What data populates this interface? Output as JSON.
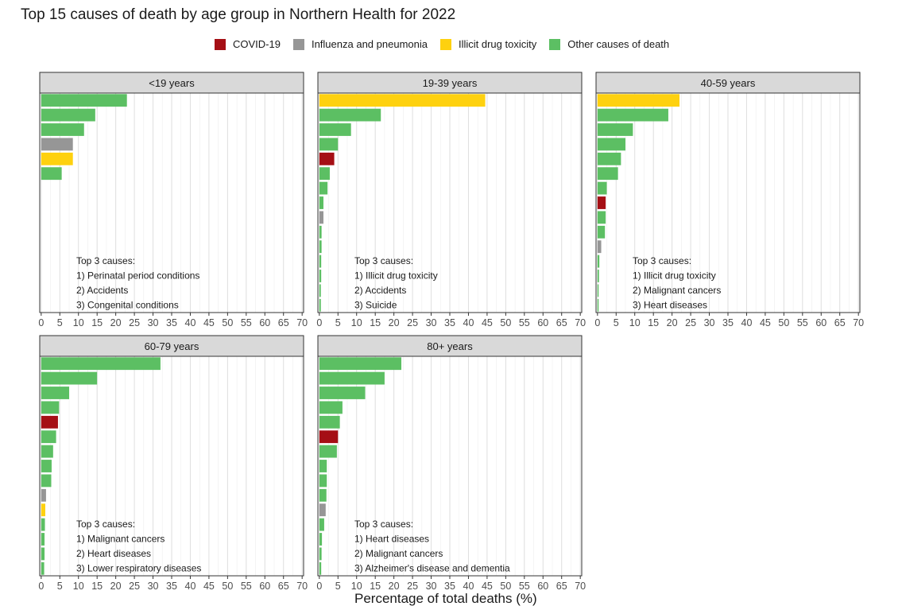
{
  "chart_data": {
    "type": "bar",
    "orientation": "horizontal",
    "title": "Top 15 causes of death by age group in Northern Health for 2022",
    "xlabel": "Percentage of total deaths (%)",
    "ylabel": "",
    "xlim": [
      0,
      70
    ],
    "x_ticks": [
      "0",
      "5",
      "10",
      "15",
      "20",
      "25",
      "30",
      "35",
      "40",
      "45",
      "50",
      "55",
      "60",
      "65",
      "70"
    ],
    "grid": true,
    "legend_position": "top",
    "legend": [
      {
        "name": "COVID-19",
        "color": "#a50f15"
      },
      {
        "name": "Influenza and pneumonia",
        "color": "#969696"
      },
      {
        "name": "Illicit drug toxicity",
        "color": "#fed10f"
      },
      {
        "name": "Other causes of death",
        "color": "#5cbf63"
      }
    ],
    "panels": [
      {
        "title": "<19 years",
        "annotation": [
          "Top 3 causes:",
          "1) Perinatal period conditions",
          "2) Accidents",
          "3) Congenital conditions"
        ],
        "bars": [
          {
            "value": 23,
            "category": "Other causes of death"
          },
          {
            "value": 14.5,
            "category": "Other causes of death"
          },
          {
            "value": 11.5,
            "category": "Other causes of death"
          },
          {
            "value": 8.5,
            "category": "Influenza and pneumonia"
          },
          {
            "value": 8.5,
            "category": "Illicit drug toxicity"
          },
          {
            "value": 5.5,
            "category": "Other causes of death"
          }
        ]
      },
      {
        "title": "19-39 years",
        "annotation": [
          "Top 3 causes:",
          "1) Illicit drug toxicity",
          "2) Accidents",
          "3) Suicide"
        ],
        "bars": [
          {
            "value": 44.5,
            "category": "Illicit drug toxicity"
          },
          {
            "value": 16.5,
            "category": "Other causes of death"
          },
          {
            "value": 8.5,
            "category": "Other causes of death"
          },
          {
            "value": 5,
            "category": "Other causes of death"
          },
          {
            "value": 4,
            "category": "COVID-19"
          },
          {
            "value": 2.8,
            "category": "Other causes of death"
          },
          {
            "value": 2.2,
            "category": "Other causes of death"
          },
          {
            "value": 1.1,
            "category": "Other causes of death"
          },
          {
            "value": 1.1,
            "category": "Influenza and pneumonia"
          },
          {
            "value": 0.6,
            "category": "Other causes of death"
          },
          {
            "value": 0.6,
            "category": "Other causes of death"
          },
          {
            "value": 0.5,
            "category": "Other causes of death"
          },
          {
            "value": 0.5,
            "category": "Other causes of death"
          },
          {
            "value": 0.4,
            "category": "Other causes of death"
          },
          {
            "value": 0.4,
            "category": "Other causes of death"
          }
        ]
      },
      {
        "title": "40-59 years",
        "annotation": [
          "Top 3 causes:",
          "1) Illicit drug toxicity",
          "2) Malignant cancers",
          "3) Heart diseases"
        ],
        "bars": [
          {
            "value": 22,
            "category": "Illicit drug toxicity"
          },
          {
            "value": 19,
            "category": "Other causes of death"
          },
          {
            "value": 9.5,
            "category": "Other causes of death"
          },
          {
            "value": 7.5,
            "category": "Other causes of death"
          },
          {
            "value": 6.3,
            "category": "Other causes of death"
          },
          {
            "value": 5.5,
            "category": "Other causes of death"
          },
          {
            "value": 2.5,
            "category": "Other causes of death"
          },
          {
            "value": 2.2,
            "category": "COVID-19"
          },
          {
            "value": 2.2,
            "category": "Other causes of death"
          },
          {
            "value": 2,
            "category": "Other causes of death"
          },
          {
            "value": 1,
            "category": "Influenza and pneumonia"
          },
          {
            "value": 0.5,
            "category": "Other causes of death"
          },
          {
            "value": 0.4,
            "category": "Other causes of death"
          },
          {
            "value": 0.3,
            "category": "Other causes of death"
          },
          {
            "value": 0.3,
            "category": "Other causes of death"
          }
        ]
      },
      {
        "title": "60-79 years",
        "annotation": [
          "Top 3 causes:",
          "1) Malignant cancers",
          "2) Heart diseases",
          "3) Lower respiratory diseases"
        ],
        "bars": [
          {
            "value": 32,
            "category": "Other causes of death"
          },
          {
            "value": 15,
            "category": "Other causes of death"
          },
          {
            "value": 7.5,
            "category": "Other causes of death"
          },
          {
            "value": 4.8,
            "category": "Other causes of death"
          },
          {
            "value": 4.5,
            "category": "COVID-19"
          },
          {
            "value": 4,
            "category": "Other causes of death"
          },
          {
            "value": 3.2,
            "category": "Other causes of death"
          },
          {
            "value": 2.8,
            "category": "Other causes of death"
          },
          {
            "value": 2.7,
            "category": "Other causes of death"
          },
          {
            "value": 1.3,
            "category": "Influenza and pneumonia"
          },
          {
            "value": 1.1,
            "category": "Illicit drug toxicity"
          },
          {
            "value": 1,
            "category": "Other causes of death"
          },
          {
            "value": 0.9,
            "category": "Other causes of death"
          },
          {
            "value": 0.9,
            "category": "Other causes of death"
          },
          {
            "value": 0.8,
            "category": "Other causes of death"
          }
        ]
      },
      {
        "title": "80+ years",
        "annotation": [
          "Top 3 causes:",
          "1) Heart diseases",
          "2) Malignant cancers",
          "3) Alzheimer's disease and dementia"
        ],
        "bars": [
          {
            "value": 22,
            "category": "Other causes of death"
          },
          {
            "value": 17.5,
            "category": "Other causes of death"
          },
          {
            "value": 12.3,
            "category": "Other causes of death"
          },
          {
            "value": 6.2,
            "category": "Other causes of death"
          },
          {
            "value": 5.5,
            "category": "Other causes of death"
          },
          {
            "value": 5,
            "category": "COVID-19"
          },
          {
            "value": 4.7,
            "category": "Other causes of death"
          },
          {
            "value": 2,
            "category": "Other causes of death"
          },
          {
            "value": 2,
            "category": "Other causes of death"
          },
          {
            "value": 1.9,
            "category": "Other causes of death"
          },
          {
            "value": 1.7,
            "category": "Influenza and pneumonia"
          },
          {
            "value": 1.3,
            "category": "Other causes of death"
          },
          {
            "value": 0.7,
            "category": "Other causes of death"
          },
          {
            "value": 0.6,
            "category": "Other causes of death"
          },
          {
            "value": 0.5,
            "category": "Other causes of death"
          }
        ]
      }
    ]
  }
}
